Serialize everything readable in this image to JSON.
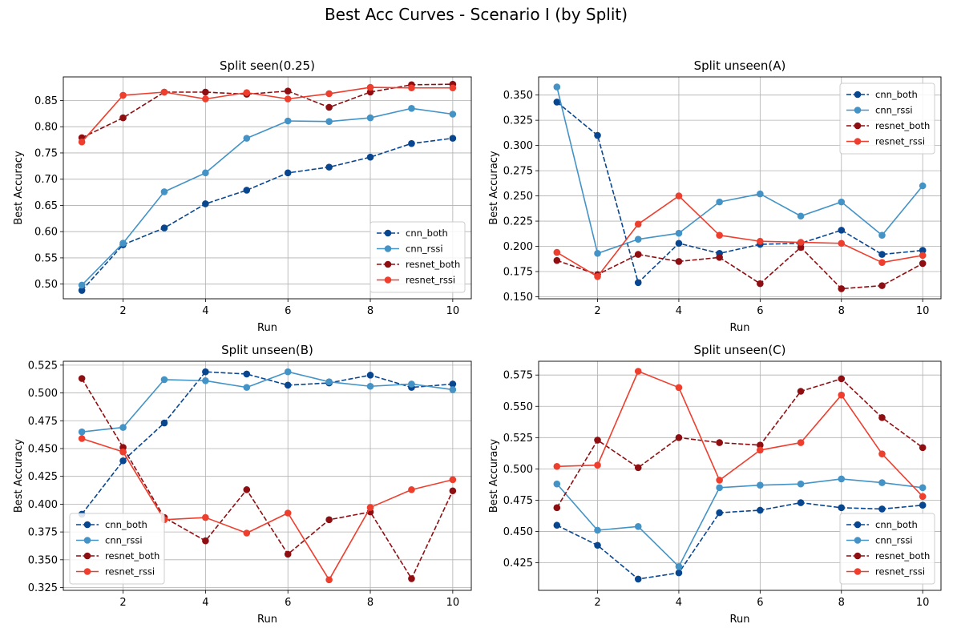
{
  "suptitle": "Best Acc Curves - Scenario I (by Split)",
  "series_style": {
    "cnn_both": {
      "color": "#08468f",
      "dashed": true
    },
    "cnn_rssi": {
      "color": "#4393c7",
      "dashed": false
    },
    "resnet_both": {
      "color": "#8f0e12",
      "dashed": true
    },
    "resnet_rssi": {
      "color": "#ee3e2e",
      "dashed": false
    }
  },
  "chart_data": [
    {
      "type": "line",
      "title": "Split seen(0.25)",
      "xlabel": "Run",
      "ylabel": "Best Accuracy",
      "x": [
        1,
        2,
        3,
        4,
        5,
        6,
        7,
        8,
        9,
        10
      ],
      "xlim": [
        0.55,
        10.45
      ],
      "ylim": [
        0.472,
        0.895
      ],
      "xticks": [
        2,
        4,
        6,
        8,
        10
      ],
      "yticks": [
        0.5,
        0.55,
        0.6,
        0.65,
        0.7,
        0.75,
        0.8,
        0.85
      ],
      "tick_decimals": 2,
      "grid": true,
      "legend_position": "bottom-right",
      "series": [
        {
          "name": "cnn_both",
          "values": [
            0.488,
            0.575,
            0.607,
            0.653,
            0.679,
            0.712,
            0.723,
            0.742,
            0.768,
            0.778
          ]
        },
        {
          "name": "cnn_rssi",
          "values": [
            0.498,
            0.578,
            0.676,
            0.712,
            0.778,
            0.811,
            0.81,
            0.817,
            0.835,
            0.824
          ]
        },
        {
          "name": "resnet_both",
          "values": [
            0.779,
            0.817,
            0.866,
            0.866,
            0.862,
            0.868,
            0.837,
            0.866,
            0.88,
            0.881
          ]
        },
        {
          "name": "resnet_rssi",
          "values": [
            0.771,
            0.86,
            0.866,
            0.853,
            0.865,
            0.853,
            0.863,
            0.875,
            0.874,
            0.874
          ]
        }
      ]
    },
    {
      "type": "line",
      "title": "Split unseen(A)",
      "xlabel": "Run",
      "ylabel": "Best Accuracy",
      "x": [
        1,
        2,
        3,
        4,
        5,
        6,
        7,
        8,
        9,
        10
      ],
      "xlim": [
        0.55,
        10.45
      ],
      "ylim": [
        0.148,
        0.368
      ],
      "xticks": [
        2,
        4,
        6,
        8,
        10
      ],
      "yticks": [
        0.15,
        0.175,
        0.2,
        0.225,
        0.25,
        0.275,
        0.3,
        0.325,
        0.35
      ],
      "tick_decimals": 3,
      "grid": true,
      "legend_position": "top-right",
      "series": [
        {
          "name": "cnn_both",
          "values": [
            0.343,
            0.31,
            0.164,
            0.203,
            0.193,
            0.202,
            0.203,
            0.216,
            0.192,
            0.196
          ]
        },
        {
          "name": "cnn_rssi",
          "values": [
            0.358,
            0.193,
            0.207,
            0.213,
            0.244,
            0.252,
            0.23,
            0.244,
            0.211,
            0.26
          ]
        },
        {
          "name": "resnet_both",
          "values": [
            0.186,
            0.172,
            0.192,
            0.185,
            0.189,
            0.163,
            0.199,
            0.158,
            0.161,
            0.183
          ]
        },
        {
          "name": "resnet_rssi",
          "values": [
            0.194,
            0.17,
            0.222,
            0.25,
            0.211,
            0.205,
            0.204,
            0.203,
            0.184,
            0.191
          ]
        }
      ]
    },
    {
      "type": "line",
      "title": "Split unseen(B)",
      "xlabel": "Run",
      "ylabel": "Best Accuracy",
      "x": [
        1,
        2,
        3,
        4,
        5,
        6,
        7,
        8,
        9,
        10
      ],
      "xlim": [
        0.55,
        10.45
      ],
      "ylim": [
        0.3225,
        0.5285
      ],
      "xticks": [
        2,
        4,
        6,
        8,
        10
      ],
      "yticks": [
        0.325,
        0.35,
        0.375,
        0.4,
        0.425,
        0.45,
        0.475,
        0.5,
        0.525
      ],
      "tick_decimals": 3,
      "grid": true,
      "legend_position": "bottom-left",
      "series": [
        {
          "name": "cnn_both",
          "values": [
            0.391,
            0.439,
            0.473,
            0.519,
            0.517,
            0.507,
            0.509,
            0.516,
            0.505,
            0.508
          ]
        },
        {
          "name": "cnn_rssi",
          "values": [
            0.465,
            0.469,
            0.512,
            0.511,
            0.505,
            0.519,
            0.51,
            0.506,
            0.508,
            0.503
          ]
        },
        {
          "name": "resnet_both",
          "values": [
            0.513,
            0.451,
            0.388,
            0.367,
            0.413,
            0.355,
            0.386,
            0.393,
            0.333,
            0.412
          ]
        },
        {
          "name": "resnet_rssi",
          "values": [
            0.459,
            0.447,
            0.386,
            0.388,
            0.374,
            0.392,
            0.332,
            0.397,
            0.413,
            0.422
          ]
        }
      ]
    },
    {
      "type": "line",
      "title": "Split unseen(C)",
      "xlabel": "Run",
      "ylabel": "Best Accuracy",
      "x": [
        1,
        2,
        3,
        4,
        5,
        6,
        7,
        8,
        9,
        10
      ],
      "xlim": [
        0.55,
        10.45
      ],
      "ylim": [
        0.403,
        0.586
      ],
      "xticks": [
        2,
        4,
        6,
        8,
        10
      ],
      "yticks": [
        0.425,
        0.45,
        0.475,
        0.5,
        0.525,
        0.55,
        0.575
      ],
      "tick_decimals": 3,
      "grid": true,
      "legend_position": "bottom-right",
      "series": [
        {
          "name": "cnn_both",
          "values": [
            0.455,
            0.439,
            0.412,
            0.417,
            0.465,
            0.467,
            0.473,
            0.469,
            0.468,
            0.471
          ]
        },
        {
          "name": "cnn_rssi",
          "values": [
            0.488,
            0.451,
            0.454,
            0.422,
            0.485,
            0.487,
            0.488,
            0.492,
            0.489,
            0.485
          ]
        },
        {
          "name": "resnet_both",
          "values": [
            0.469,
            0.523,
            0.501,
            0.525,
            0.521,
            0.519,
            0.562,
            0.572,
            0.541,
            0.517
          ]
        },
        {
          "name": "resnet_rssi",
          "values": [
            0.502,
            0.503,
            0.578,
            0.565,
            0.491,
            0.515,
            0.521,
            0.559,
            0.512,
            0.478
          ]
        }
      ]
    }
  ]
}
